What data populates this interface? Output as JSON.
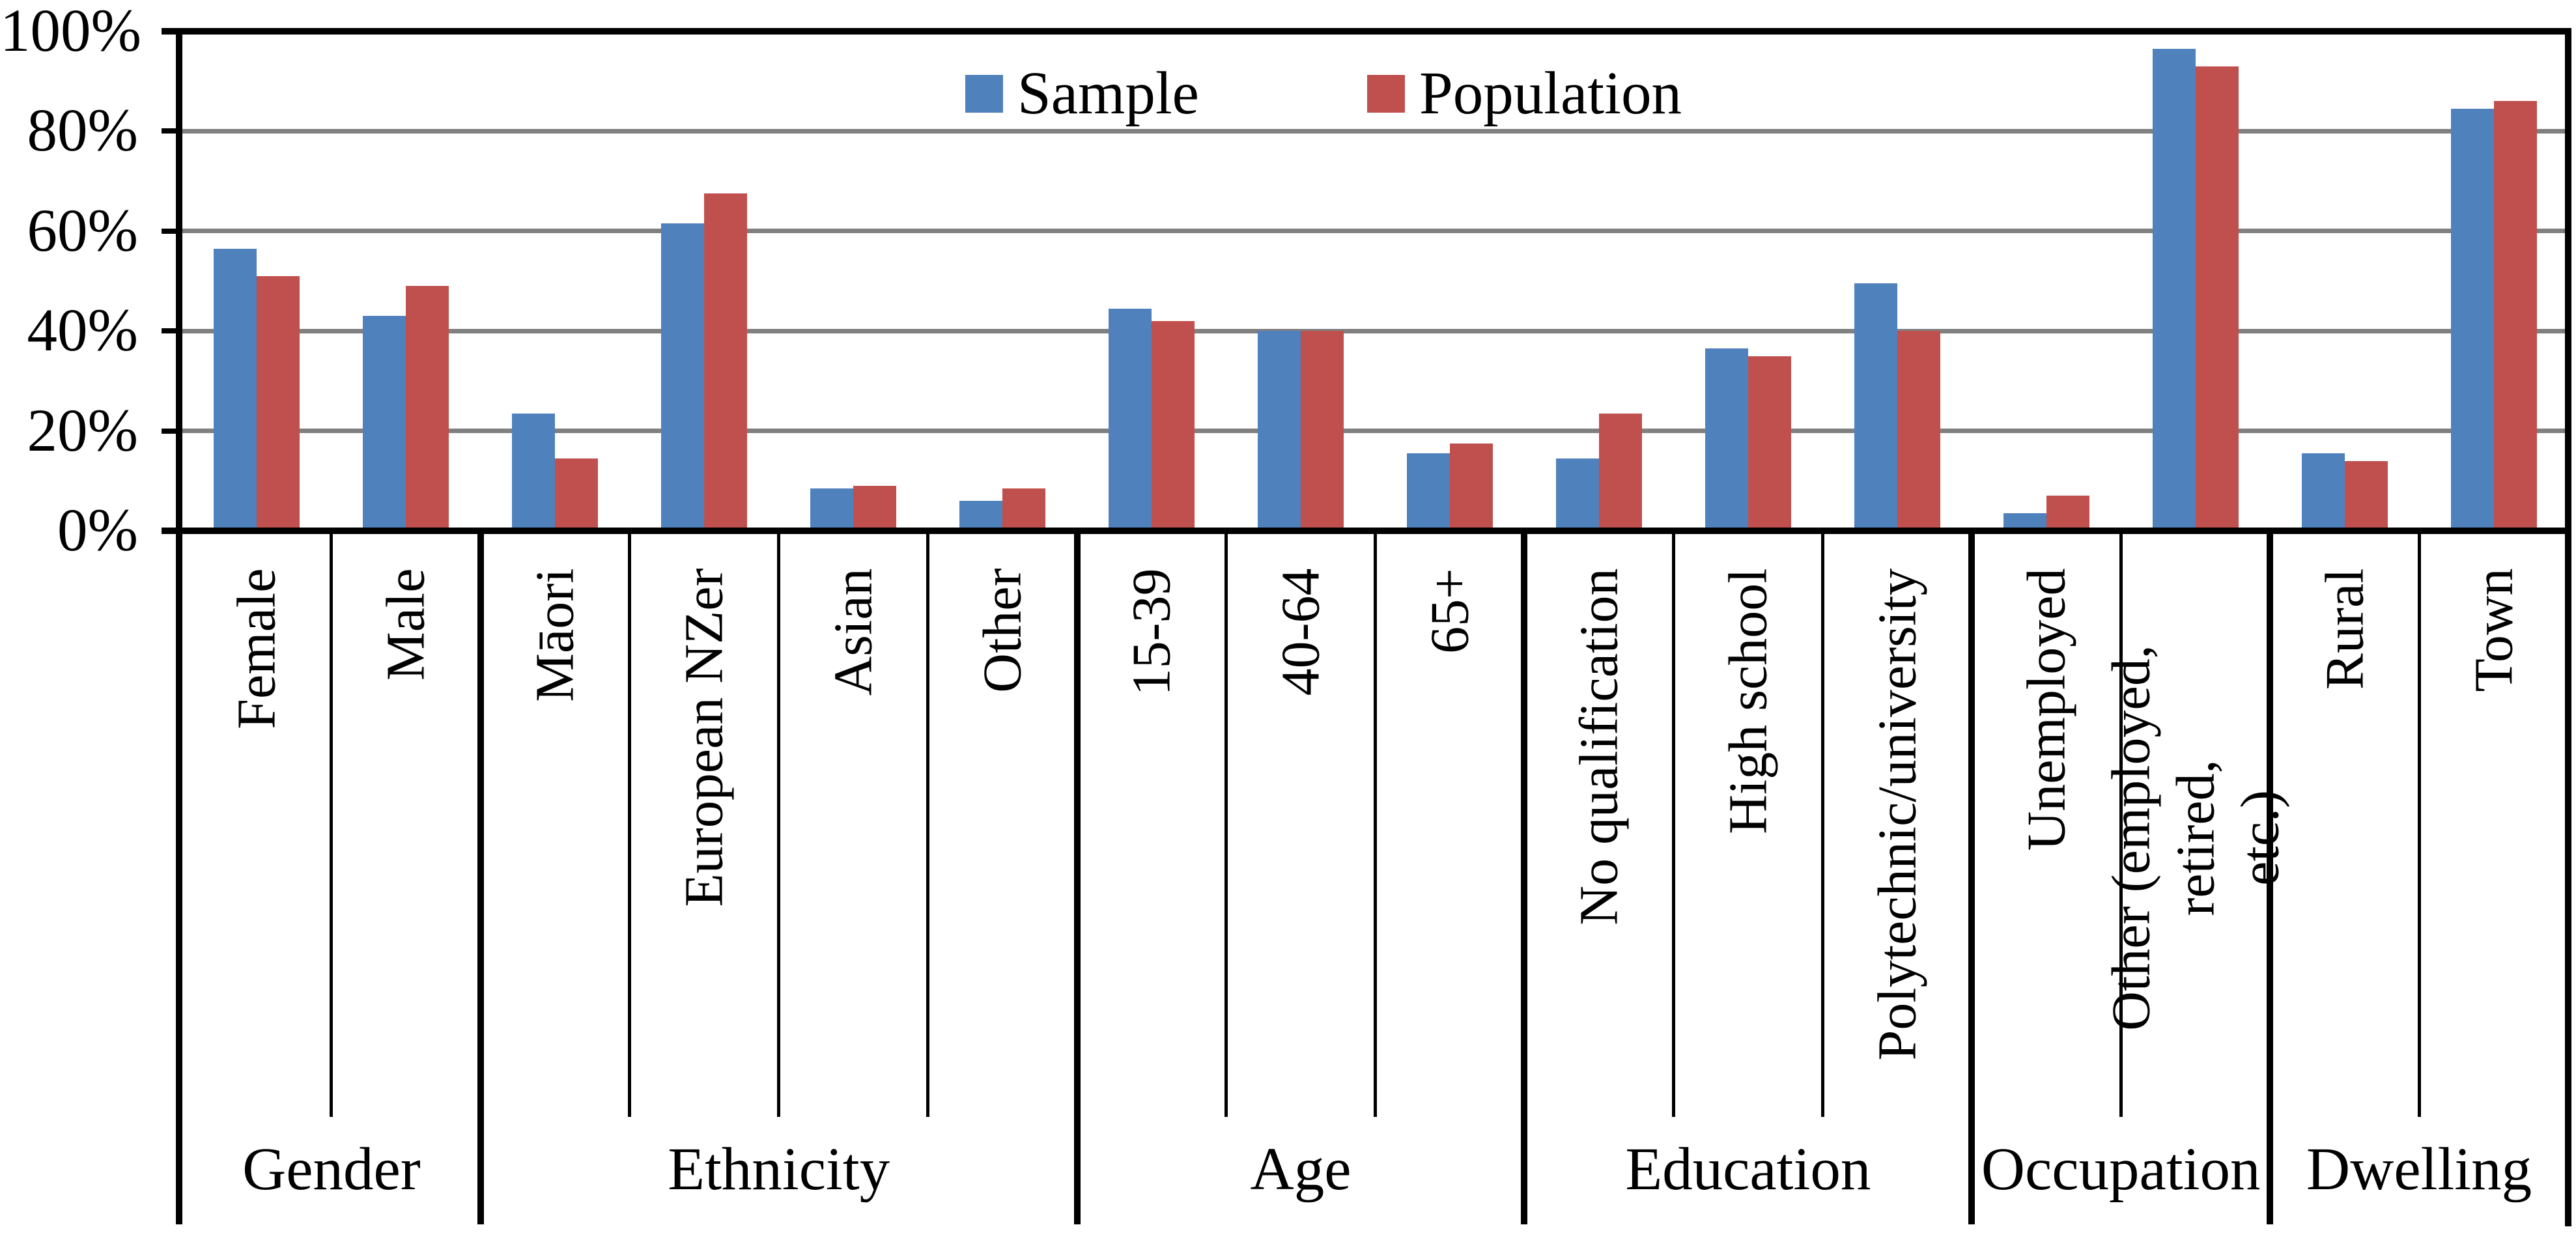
{
  "chart_data": {
    "type": "bar",
    "title": "",
    "xlabel": "",
    "ylabel": "",
    "ylim": [
      0,
      100
    ],
    "yticks": [
      0,
      20,
      40,
      60,
      80,
      100
    ],
    "ytick_labels": [
      "0%",
      "20%",
      "40%",
      "60%",
      "80%",
      "100%"
    ],
    "grid": true,
    "gridline_color": "#808080",
    "legend_position": "top-center",
    "categories": [
      "Female",
      "Male",
      "Māori",
      "European NZer",
      "Asian",
      "Other",
      "15-39",
      "40-64",
      "65+",
      "No qualification",
      "High school",
      "Polytechnic/university",
      "Unemployed",
      "Other (employed, retired,\netc.)",
      "Rural",
      "Town"
    ],
    "groups": [
      {
        "label": "Gender",
        "span": 2
      },
      {
        "label": "Ethnicity",
        "span": 4
      },
      {
        "label": "Age",
        "span": 3
      },
      {
        "label": "Education",
        "span": 3
      },
      {
        "label": "Occupation",
        "span": 2
      },
      {
        "label": "Dwelling",
        "span": 2
      }
    ],
    "series": [
      {
        "name": "Sample",
        "color": "#4F81BD",
        "values": [
          56.5,
          43,
          23.5,
          61.5,
          8.5,
          6,
          44.5,
          40,
          15.5,
          14.5,
          36.5,
          49.5,
          3.5,
          96.5,
          15.5,
          84.5
        ]
      },
      {
        "name": "Population",
        "color": "#C0504D",
        "values": [
          51,
          49,
          14.5,
          67.5,
          9,
          8.5,
          42,
          40,
          17.5,
          23.5,
          35,
          40,
          7,
          93,
          14,
          86
        ]
      }
    ]
  },
  "colors": {
    "axis": "#000000",
    "gridline": "#808080",
    "background": "#ffffff"
  }
}
